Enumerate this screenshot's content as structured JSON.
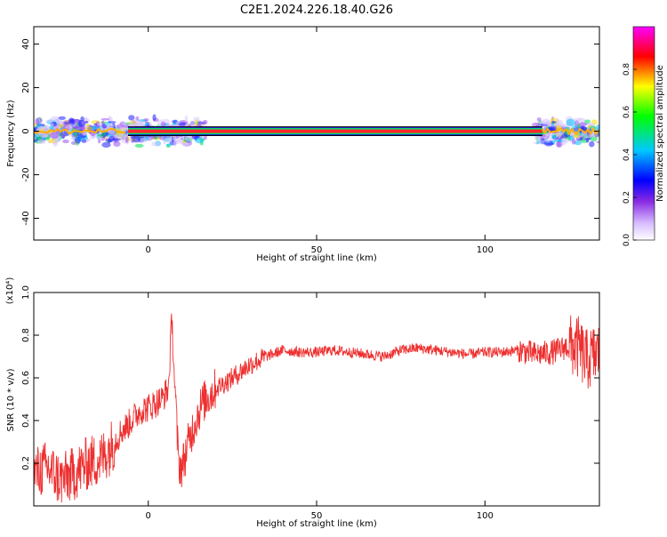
{
  "title": "C2E1.2024.226.18.40.G26",
  "chart_data": [
    {
      "type": "heatmap",
      "xlabel": "Height of straight line (km)",
      "ylabel": "Frequency (Hz)",
      "xlim": [
        -34,
        134
      ],
      "ylim": [
        -50,
        48
      ],
      "xticks": [
        0,
        50,
        100
      ],
      "yticks": [
        -40,
        -20,
        0,
        20,
        40
      ],
      "colorbar": {
        "label": "Normalized spectral amplitude",
        "range": [
          0,
          1
        ],
        "ticks": [
          0.0,
          0.2,
          0.4,
          0.6,
          0.8
        ],
        "colors": [
          "#ffffff",
          "#c9a9ff",
          "#8a2be2",
          "#0000ff",
          "#00c8ff",
          "#00ff00",
          "#ffff00",
          "#ff0000",
          "#ff00ff"
        ]
      },
      "band": {
        "center_freq": 0,
        "solid_from": -6,
        "solid_to": 117,
        "peak_value": 0.95
      }
    },
    {
      "type": "line",
      "xlabel": "Height of straight line (km)",
      "ylabel": "SNR (10 * v/v)",
      "yscale_note": "(x10⁴)",
      "xlim": [
        -34,
        134
      ],
      "ylim": [
        0,
        1.0
      ],
      "xticks": [
        0,
        50,
        100
      ],
      "yticks": [
        0.2,
        0.4,
        0.6,
        0.8,
        1.0
      ],
      "series_color": "#ee3030",
      "series": [
        {
          "x": [
            -34,
            -30,
            -26,
            -22,
            -18,
            -14,
            -10,
            -8,
            -6,
            -4,
            -2,
            0,
            2,
            4,
            6,
            7,
            8,
            9,
            10,
            12,
            14,
            16,
            20,
            25,
            30,
            35,
            40,
            45,
            50,
            55,
            60,
            65,
            70,
            75,
            80,
            85,
            90,
            95,
            100,
            105,
            110,
            115,
            120,
            125,
            128,
            130,
            132,
            134
          ],
          "y": [
            0.15,
            0.18,
            0.12,
            0.15,
            0.2,
            0.22,
            0.3,
            0.35,
            0.38,
            0.42,
            0.45,
            0.46,
            0.48,
            0.5,
            0.55,
            0.88,
            0.52,
            0.2,
            0.18,
            0.3,
            0.4,
            0.48,
            0.55,
            0.6,
            0.66,
            0.7,
            0.73,
            0.72,
            0.72,
            0.73,
            0.72,
            0.71,
            0.7,
            0.73,
            0.74,
            0.73,
            0.72,
            0.71,
            0.72,
            0.72,
            0.73,
            0.71,
            0.72,
            0.75,
            0.74,
            0.68,
            0.7,
            0.72
          ]
        }
      ]
    }
  ]
}
